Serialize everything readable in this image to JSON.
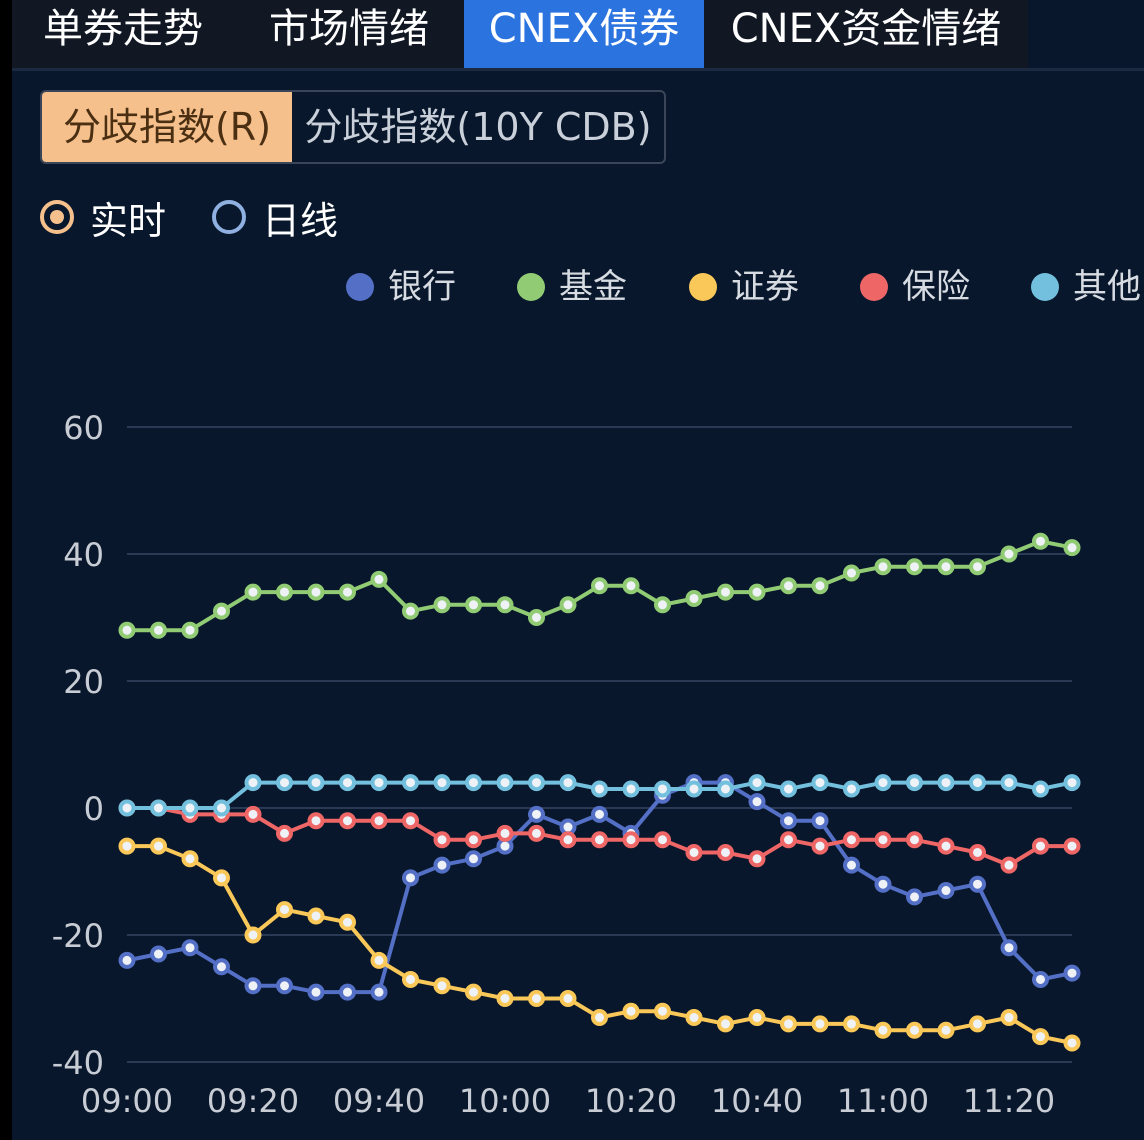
{
  "tabs": [
    {
      "label": "单券走势"
    },
    {
      "label": "市场情绪"
    },
    {
      "label": "CNEX债券"
    },
    {
      "label": "CNEX资金情绪"
    }
  ],
  "active_tab": 2,
  "segments": [
    {
      "label": "分歧指数(R)"
    },
    {
      "label": "分歧指数(10Y CDB)"
    }
  ],
  "radios": [
    {
      "label": "实时",
      "checked": true
    },
    {
      "label": "日线",
      "checked": false
    }
  ],
  "chart_data": {
    "type": "line",
    "title": "",
    "xlabel": "",
    "ylabel": "",
    "ylim": [
      -40,
      60
    ],
    "yticks": [
      -40,
      -20,
      0,
      20,
      40,
      60
    ],
    "grid": true,
    "legend_position": "top-right",
    "xticks": [
      "09:00",
      "09:20",
      "09:40",
      "10:00",
      "10:20",
      "10:40",
      "11:00",
      "11:20"
    ],
    "x": [
      "09:00",
      "09:05",
      "09:10",
      "09:15",
      "09:20",
      "09:25",
      "09:30",
      "09:35",
      "09:40",
      "09:45",
      "09:50",
      "09:55",
      "10:00",
      "10:05",
      "10:10",
      "10:15",
      "10:20",
      "10:25",
      "10:30",
      "10:35",
      "10:40",
      "10:45",
      "10:50",
      "10:55",
      "11:00",
      "11:05",
      "11:10",
      "11:15",
      "11:20",
      "11:25",
      "11:30"
    ],
    "series": [
      {
        "name": "银行",
        "color": "#5470c6",
        "values": [
          -24,
          -23,
          -22,
          -25,
          -28,
          -28,
          -29,
          -29,
          -29,
          -11,
          -9,
          -8,
          -6,
          -1,
          -3,
          -1,
          -4,
          2,
          4,
          4,
          1,
          -2,
          -2,
          -9,
          -12,
          -14,
          -13,
          -12,
          -22,
          -27,
          -26
        ]
      },
      {
        "name": "基金",
        "color": "#91cc75",
        "values": [
          28,
          28,
          28,
          31,
          34,
          34,
          34,
          34,
          36,
          31,
          32,
          32,
          32,
          30,
          32,
          35,
          35,
          32,
          33,
          34,
          34,
          35,
          35,
          37,
          38,
          38,
          38,
          38,
          40,
          42,
          41
        ]
      },
      {
        "name": "证券",
        "color": "#fac858",
        "values": [
          -6,
          -6,
          -8,
          -11,
          -20,
          -16,
          -17,
          -18,
          -24,
          -27,
          -28,
          -29,
          -30,
          -30,
          -30,
          -33,
          -32,
          -32,
          -33,
          -34,
          -33,
          -34,
          -34,
          -34,
          -35,
          -35,
          -35,
          -34,
          -33,
          -36,
          -37
        ]
      },
      {
        "name": "保险",
        "color": "#ee6666",
        "values": [
          0,
          0,
          -1,
          -1,
          -1,
          -4,
          -2,
          -2,
          -2,
          -2,
          -5,
          -5,
          -4,
          -4,
          -5,
          -5,
          -5,
          -5,
          -7,
          -7,
          -8,
          -5,
          -6,
          -5,
          -5,
          -5,
          -6,
          -7,
          -9,
          -6,
          -6
        ]
      },
      {
        "name": "其他",
        "color": "#73c0de",
        "values": [
          0,
          0,
          0,
          0,
          4,
          4,
          4,
          4,
          4,
          4,
          4,
          4,
          4,
          4,
          4,
          3,
          3,
          3,
          3,
          3,
          4,
          3,
          4,
          3,
          4,
          4,
          4,
          4,
          4,
          3,
          4
        ]
      }
    ]
  }
}
